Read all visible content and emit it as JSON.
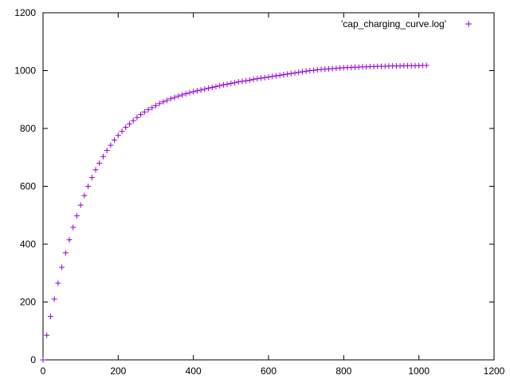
{
  "chart_data": {
    "type": "scatter",
    "title": "",
    "xlabel": "",
    "ylabel": "",
    "xlim": [
      0,
      1200
    ],
    "ylim": [
      0,
      1200
    ],
    "x_ticks": [
      0,
      200,
      400,
      600,
      800,
      1000,
      1200
    ],
    "y_ticks": [
      0,
      200,
      400,
      600,
      800,
      1000,
      1200
    ],
    "grid": false,
    "legend_position": "top-right",
    "series": [
      {
        "name": "'cap_charging_curve.log'",
        "color": "#9400d3",
        "marker": "plus",
        "x": [
          0,
          10,
          20,
          30,
          40,
          50,
          60,
          70,
          80,
          90,
          100,
          110,
          120,
          130,
          140,
          150,
          160,
          170,
          180,
          190,
          200,
          210,
          220,
          230,
          240,
          250,
          260,
          270,
          280,
          290,
          300,
          310,
          320,
          330,
          340,
          350,
          360,
          370,
          380,
          390,
          400,
          410,
          420,
          430,
          440,
          450,
          460,
          470,
          480,
          490,
          500,
          510,
          520,
          530,
          540,
          550,
          560,
          570,
          580,
          590,
          600,
          610,
          620,
          630,
          640,
          650,
          660,
          670,
          680,
          690,
          700,
          710,
          720,
          730,
          740,
          750,
          760,
          770,
          780,
          790,
          800,
          810,
          820,
          830,
          840,
          850,
          860,
          870,
          880,
          890,
          900,
          910,
          920,
          930,
          940,
          950,
          960,
          970,
          980,
          990,
          1000,
          1010,
          1020
        ],
        "y": [
          0,
          85,
          150,
          210,
          265,
          320,
          370,
          415,
          458,
          498,
          535,
          568,
          600,
          630,
          657,
          680,
          703,
          724,
          742,
          760,
          776,
          790,
          804,
          816,
          827,
          838,
          848,
          857,
          865,
          872,
          879,
          886,
          892,
          897,
          903,
          907,
          912,
          916,
          920,
          924,
          927,
          930,
          933,
          936,
          939,
          942,
          945,
          948,
          951,
          953,
          956,
          958,
          961,
          963,
          965,
          967,
          970,
          972,
          974,
          976,
          978,
          980,
          982,
          984,
          986,
          988,
          990,
          992,
          994,
          996,
          998,
          1000,
          1001,
          1003,
          1004,
          1005,
          1006,
          1007,
          1008,
          1009,
          1010,
          1011,
          1011,
          1012,
          1012,
          1013,
          1013,
          1014,
          1014,
          1015,
          1015,
          1015,
          1016,
          1016,
          1016,
          1016,
          1017,
          1017,
          1017,
          1017,
          1017,
          1018,
          1018
        ]
      }
    ]
  }
}
